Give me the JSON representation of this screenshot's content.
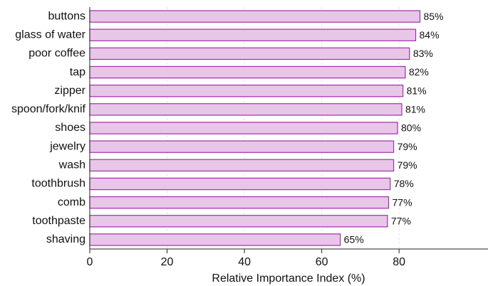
{
  "chart_data": {
    "type": "barh",
    "categories": [
      "buttons",
      "glass of water",
      "poor coffee",
      "tap",
      "zipper",
      "spoon/fork/knif",
      "shoes",
      "jewelry",
      "wash",
      "toothbrush",
      "comb",
      "toothpaste",
      "shaving"
    ],
    "values": [
      85.4,
      84.3,
      82.7,
      81.6,
      81.0,
      80.7,
      79.6,
      78.6,
      78.6,
      77.7,
      77.3,
      77.0,
      64.8
    ],
    "value_labels": [
      "85%",
      "84%",
      "83%",
      "82%",
      "81%",
      "81%",
      "80%",
      "79%",
      "79%",
      "78%",
      "77%",
      "77%",
      "65%"
    ],
    "color": "#e8c6e8",
    "edge_color": "#a030a8",
    "xlabel": "Relative Importance Index (%)",
    "xlim": [
      0,
      103
    ],
    "xticks": [
      0,
      20,
      40,
      60,
      80
    ],
    "grid": true
  }
}
